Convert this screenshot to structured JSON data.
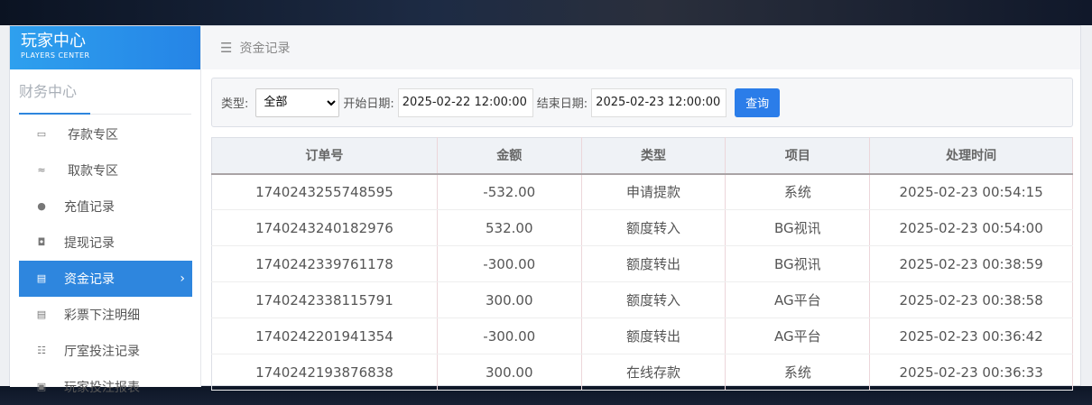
{
  "brand": {
    "title": "玩家中心",
    "subtitle": "PLAYERS CENTER"
  },
  "sidebar": {
    "section": "财务中心",
    "items": [
      {
        "label": "存款专区",
        "icon": "card-icon"
      },
      {
        "label": "取款专区",
        "icon": "hand-money-icon"
      },
      {
        "label": "充值记录",
        "icon": "money-bag-icon"
      },
      {
        "label": "提现记录",
        "icon": "wallet-icon"
      },
      {
        "label": "资金记录",
        "icon": "funds-icon",
        "active": true
      },
      {
        "label": "彩票下注明细",
        "icon": "list-icon"
      },
      {
        "label": "厅室投注记录",
        "icon": "list-bullets-icon"
      },
      {
        "label": "玩家投注报表",
        "icon": "report-icon"
      }
    ]
  },
  "breadcrumb": {
    "label": "资金记录"
  },
  "filter": {
    "type_label": "类型:",
    "type_value": "全部",
    "start_label": "开始日期:",
    "start_value": "2025-02-22 12:00:00",
    "end_label": "结束日期:",
    "end_value": "2025-02-23 12:00:00",
    "query_label": "查询"
  },
  "table": {
    "headers": [
      "订单号",
      "金额",
      "类型",
      "项目",
      "处理时间"
    ],
    "rows": [
      [
        "1740243255748595",
        "-532.00",
        "申请提款",
        "系统",
        "2025-02-23 00:54:15"
      ],
      [
        "1740243240182976",
        "532.00",
        "额度转入",
        "BG视讯",
        "2025-02-23 00:54:00"
      ],
      [
        "1740242339761178",
        "-300.00",
        "额度转出",
        "BG视讯",
        "2025-02-23 00:38:59"
      ],
      [
        "1740242338115791",
        "300.00",
        "额度转入",
        "AG平台",
        "2025-02-23 00:38:58"
      ],
      [
        "1740242201941354",
        "-300.00",
        "额度转出",
        "AG平台",
        "2025-02-23 00:36:42"
      ],
      [
        "1740242193876838",
        "300.00",
        "在线存款",
        "系统",
        "2025-02-23 00:36:33"
      ]
    ]
  },
  "colors": {
    "accent": "#2e86de",
    "button": "#2b7de9"
  }
}
